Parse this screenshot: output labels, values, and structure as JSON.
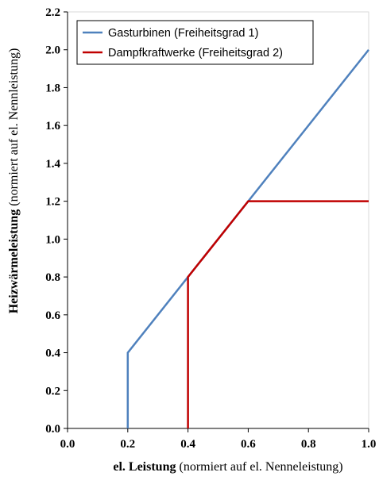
{
  "chart_data": {
    "type": "line",
    "xlabel": {
      "bold": "el. Leistung",
      "normal": " (normiert auf el. Nenneleistung)"
    },
    "ylabel": {
      "bold": "Heizwärmeleistung",
      "normal": " (normiert auf el. Nennleistung)"
    },
    "xlim": [
      0,
      1
    ],
    "ylim": [
      0,
      2.2
    ],
    "xticks": [
      "0.0",
      "0.2",
      "0.4",
      "0.6",
      "0.8",
      "1.0"
    ],
    "yticks": [
      "0.0",
      "0.2",
      "0.4",
      "0.6",
      "0.8",
      "1.0",
      "1.2",
      "1.4",
      "1.6",
      "1.8",
      "2.0",
      "2.2"
    ],
    "grid": false,
    "legend_position": "top-left",
    "series": [
      {
        "name": "Gasturbinen (Freiheitsgrad 1)",
        "color": "#4f81bd",
        "points": [
          [
            0.2,
            0.0
          ],
          [
            0.2,
            0.4
          ],
          [
            1.0,
            2.0
          ]
        ]
      },
      {
        "name": "Dampfkraftwerke (Freiheitsgrad 2)",
        "color": "#c00000",
        "points": [
          [
            0.4,
            0.0
          ],
          [
            0.4,
            0.8
          ],
          [
            0.6,
            1.2
          ],
          [
            1.0,
            1.2
          ]
        ]
      }
    ]
  }
}
